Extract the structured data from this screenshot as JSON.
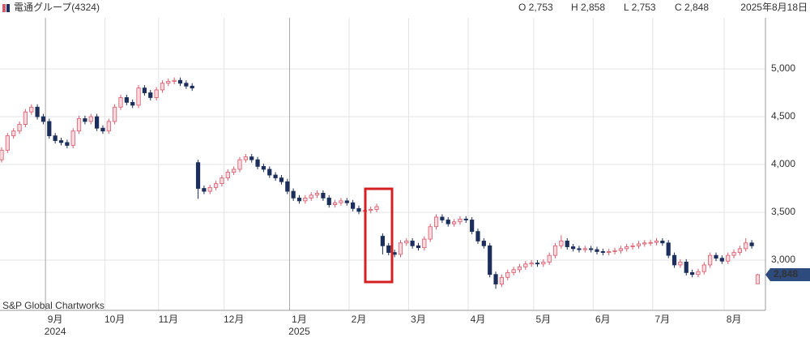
{
  "chart_data": {
    "type": "candlestick",
    "title": "電通グループ(4324)",
    "ohlc_labels": [
      "O 2,753",
      "H 2,858",
      "L 2,753",
      "C 2,848"
    ],
    "date": "2025年8月18日",
    "source": "S&P Global Chartworks",
    "last_close_label": "2,848",
    "up_color": "#d9596b",
    "down_color": "#1c2f5c",
    "grid": true,
    "ylim": [
      2475,
      5534
    ],
    "yticks": [
      {
        "value": 3000,
        "label": "3,000"
      },
      {
        "value": 3500,
        "label": "3,500"
      },
      {
        "value": 4000,
        "label": "4,000"
      },
      {
        "value": 4500,
        "label": "4,500"
      },
      {
        "value": 5000,
        "label": "5,000"
      }
    ],
    "xticks": [
      {
        "value": 9,
        "label": "9月"
      },
      {
        "value": 19,
        "label": "10月"
      },
      {
        "value": 28,
        "label": "11月"
      },
      {
        "value": 39,
        "label": "12月"
      },
      {
        "value": 50,
        "label": "1月"
      },
      {
        "value": 60,
        "label": "2月"
      },
      {
        "value": 70,
        "label": "3月"
      },
      {
        "value": 80,
        "label": "4月"
      },
      {
        "value": 91,
        "label": "5月"
      },
      {
        "value": 101,
        "label": "6月"
      },
      {
        "value": 111,
        "label": "7月"
      },
      {
        "value": 123,
        "label": "8月"
      }
    ],
    "x_year_labels": [
      {
        "value": 9,
        "label": "2024"
      },
      {
        "value": 50,
        "label": "2025"
      }
    ],
    "open": [
      4050,
      4150,
      4300,
      4350,
      4420,
      4550,
      4600,
      4500,
      4450,
      4300,
      4250,
      4230,
      4200,
      4350,
      4480,
      4450,
      4500,
      4380,
      4350,
      4450,
      4600,
      4700,
      4650,
      4620,
      4800,
      4750,
      4700,
      4780,
      4850,
      4870,
      4880,
      4850,
      4820,
      4020,
      3750,
      3720,
      3760,
      3800,
      3860,
      3920,
      3950,
      4050,
      4080,
      4050,
      3980,
      3950,
      3890,
      3860,
      3820,
      3720,
      3650,
      3620,
      3650,
      3680,
      3700,
      3650,
      3580,
      3600,
      3620,
      3600,
      3540,
      3510,
      3520,
      3530,
      3250,
      3150,
      3080,
      3060,
      3180,
      3200,
      3150,
      3130,
      3220,
      3350,
      3450,
      3420,
      3380,
      3400,
      3430,
      3420,
      3300,
      3200,
      3150,
      2850,
      2750,
      2820,
      2870,
      2900,
      2930,
      2960,
      2970,
      2960,
      2980,
      3050,
      3150,
      3200,
      3140,
      3120,
      3110,
      3120,
      3110,
      3090,
      3080,
      3090,
      3100,
      3120,
      3140,
      3150,
      3170,
      3180,
      3185,
      3200,
      3180,
      3050,
      2950,
      2980,
      2870,
      2850,
      2880,
      2950,
      3050,
      3020,
      2990,
      3050,
      3080,
      3120,
      3180,
      2753
    ],
    "high": [
      4180,
      4330,
      4380,
      4450,
      4580,
      4630,
      4630,
      4530,
      4480,
      4330,
      4280,
      4260,
      4380,
      4510,
      4510,
      4530,
      4530,
      4410,
      4480,
      4630,
      4730,
      4730,
      4680,
      4830,
      4830,
      4780,
      4810,
      4880,
      4900,
      4910,
      4910,
      4880,
      4850,
      4050,
      3780,
      3790,
      3830,
      3890,
      3950,
      3980,
      4080,
      4110,
      4110,
      4080,
      4010,
      3980,
      3920,
      3890,
      3850,
      3750,
      3680,
      3680,
      3710,
      3730,
      3730,
      3680,
      3630,
      3650,
      3650,
      3630,
      3570,
      3550,
      3560,
      3590,
      3280,
      3180,
      3110,
      3210,
      3230,
      3230,
      3180,
      3250,
      3380,
      3480,
      3480,
      3450,
      3430,
      3460,
      3460,
      3450,
      3330,
      3230,
      3180,
      2880,
      2850,
      2900,
      2930,
      2960,
      2990,
      3000,
      3000,
      3010,
      3080,
      3180,
      3260,
      3230,
      3170,
      3150,
      3150,
      3150,
      3140,
      3120,
      3120,
      3130,
      3150,
      3170,
      3180,
      3200,
      3210,
      3215,
      3230,
      3230,
      3210,
      3080,
      3010,
      3010,
      2900,
      2910,
      2980,
      3080,
      3080,
      3050,
      3080,
      3110,
      3150,
      3230,
      3210,
      2858
    ],
    "low": [
      4020,
      4120,
      4270,
      4320,
      4390,
      4520,
      4470,
      4420,
      4270,
      4220,
      4200,
      4170,
      4170,
      4320,
      4420,
      4420,
      4350,
      4320,
      4320,
      4420,
      4570,
      4620,
      4590,
      4590,
      4720,
      4670,
      4670,
      4750,
      4820,
      4840,
      4820,
      4790,
      4770,
      3640,
      3690,
      3690,
      3730,
      3770,
      3830,
      3890,
      3920,
      4020,
      4020,
      3950,
      3920,
      3860,
      3830,
      3790,
      3690,
      3620,
      3590,
      3590,
      3620,
      3650,
      3620,
      3550,
      3550,
      3570,
      3570,
      3510,
      3480,
      3480,
      3490,
      3500,
      3060,
      3050,
      3030,
      3030,
      3150,
      3120,
      3100,
      3100,
      3190,
      3320,
      3390,
      3350,
      3350,
      3370,
      3390,
      3270,
      3170,
      3120,
      2820,
      2700,
      2720,
      2790,
      2840,
      2870,
      2900,
      2930,
      2930,
      2930,
      2950,
      3020,
      3120,
      3110,
      3090,
      3080,
      3080,
      3080,
      3060,
      3050,
      3050,
      3060,
      3070,
      3090,
      3110,
      3120,
      3140,
      3150,
      3155,
      3150,
      3020,
      2920,
      2920,
      2840,
      2820,
      2820,
      2850,
      2920,
      2990,
      2960,
      2960,
      3020,
      3050,
      3090,
      3120,
      2753
    ],
    "close": [
      4150,
      4300,
      4350,
      4420,
      4550,
      4600,
      4500,
      4450,
      4300,
      4250,
      4230,
      4200,
      4350,
      4480,
      4450,
      4500,
      4380,
      4350,
      4450,
      4600,
      4700,
      4650,
      4620,
      4800,
      4750,
      4700,
      4780,
      4850,
      4870,
      4880,
      4850,
      4820,
      4800,
      3750,
      3720,
      3760,
      3800,
      3860,
      3920,
      3950,
      4050,
      4080,
      4050,
      3980,
      3950,
      3890,
      3860,
      3820,
      3720,
      3650,
      3620,
      3650,
      3680,
      3700,
      3650,
      3580,
      3600,
      3620,
      3600,
      3540,
      3510,
      3520,
      3530,
      3560,
      3150,
      3080,
      3060,
      3180,
      3200,
      3150,
      3130,
      3220,
      3350,
      3450,
      3420,
      3380,
      3400,
      3430,
      3420,
      3300,
      3200,
      3150,
      2850,
      2750,
      2820,
      2870,
      2900,
      2930,
      2960,
      2970,
      2960,
      2980,
      3050,
      3150,
      3200,
      3140,
      3120,
      3110,
      3120,
      3110,
      3090,
      3080,
      3090,
      3100,
      3120,
      3140,
      3150,
      3170,
      3180,
      3185,
      3200,
      3180,
      3050,
      2950,
      2980,
      2870,
      2850,
      2880,
      2950,
      3050,
      3020,
      2990,
      3050,
      3080,
      3120,
      3180,
      3150,
      2848
    ]
  }
}
